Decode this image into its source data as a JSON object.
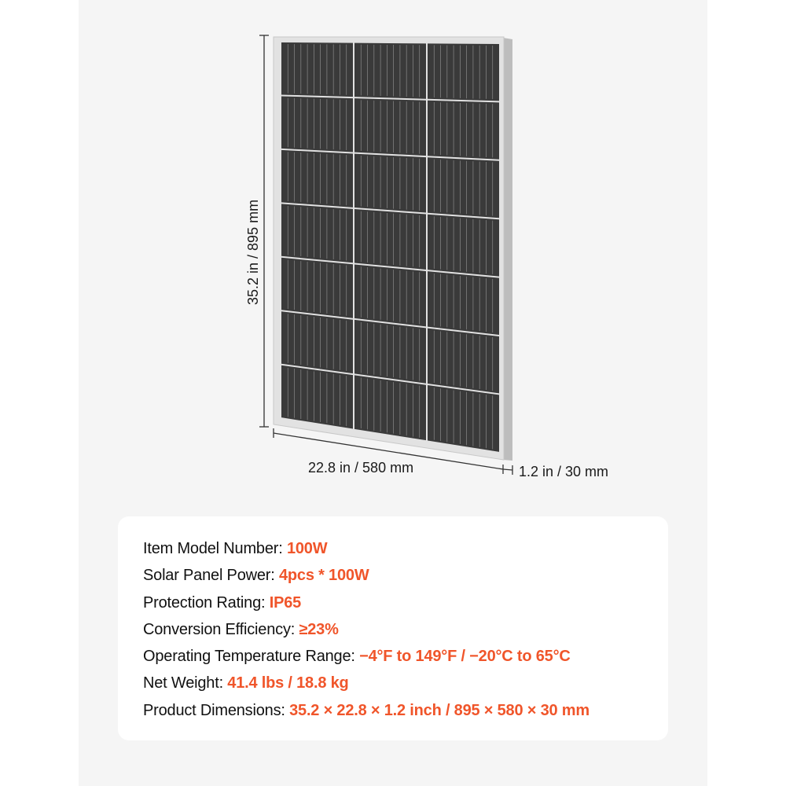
{
  "product_image": {
    "icon": "solar-panel-image",
    "grid": {
      "columns": 3,
      "rows": 7
    },
    "frame_color": "#d9d9d9",
    "cell_color": "#3a3a3a"
  },
  "dimensions": {
    "height": "35.2 in / 895 mm",
    "width": "22.8 in / 580 mm",
    "depth": "1.2 in / 30 mm"
  },
  "specs": [
    {
      "label": "Item Model Number: ",
      "value": "100W"
    },
    {
      "label": "Solar Panel Power: ",
      "value": "4pcs * 100W"
    },
    {
      "label": "Protection Rating: ",
      "value": "IP65"
    },
    {
      "label": "Conversion Efficiency: ",
      "value": "≥23%"
    },
    {
      "label": "Operating Temperature Range: ",
      "value": "−4°F to 149°F / −20°C to 65°C"
    },
    {
      "label": "Net Weight: ",
      "value": "41.4 lbs / 18.8 kg"
    },
    {
      "label": "Product Dimensions: ",
      "value": "35.2 × 22.8 × 1.2 inch / 895 × 580 × 30 mm"
    }
  ],
  "colors": {
    "accent": "#f0552a",
    "text": "#111111",
    "background": "#f5f5f5"
  }
}
